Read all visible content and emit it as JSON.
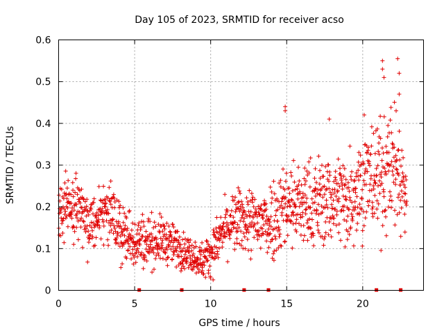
{
  "chart_data": {
    "type": "scatter",
    "title": "Day 105 of 2023, SRMTID for receiver acso",
    "xlabel": "GPS time / hours",
    "ylabel": "SRMTID / TECUs",
    "xlim": [
      0,
      24
    ],
    "ylim": [
      0,
      0.6
    ],
    "xticks": [
      0,
      5,
      10,
      15,
      20
    ],
    "yticks": [
      0,
      0.1,
      0.2,
      0.3,
      0.4,
      0.5,
      0.6
    ],
    "xtick_labels": [
      "0",
      "5",
      "10",
      "15",
      "20"
    ],
    "ytick_labels": [
      "0",
      "0.1",
      "0.2",
      "0.3",
      "0.4",
      "0.5",
      "0.6"
    ],
    "grid": true,
    "marker": "+",
    "color": "#e00000",
    "series": [
      {
        "name": "SRMTID",
        "trend": [
          {
            "x": 0.0,
            "y": 0.18
          },
          {
            "x": 0.5,
            "y": 0.2
          },
          {
            "x": 1.0,
            "y": 0.19
          },
          {
            "x": 2.0,
            "y": 0.16
          },
          {
            "x": 3.0,
            "y": 0.2
          },
          {
            "x": 4.0,
            "y": 0.14
          },
          {
            "x": 5.0,
            "y": 0.12
          },
          {
            "x": 6.0,
            "y": 0.12
          },
          {
            "x": 7.0,
            "y": 0.12
          },
          {
            "x": 8.0,
            "y": 0.1
          },
          {
            "x": 9.0,
            "y": 0.08
          },
          {
            "x": 9.5,
            "y": 0.07
          },
          {
            "x": 10.0,
            "y": 0.09
          },
          {
            "x": 11.0,
            "y": 0.15
          },
          {
            "x": 12.0,
            "y": 0.17
          },
          {
            "x": 13.0,
            "y": 0.16
          },
          {
            "x": 14.0,
            "y": 0.17
          },
          {
            "x": 15.0,
            "y": 0.21
          },
          {
            "x": 16.0,
            "y": 0.2
          },
          {
            "x": 17.0,
            "y": 0.21
          },
          {
            "x": 18.0,
            "y": 0.22
          },
          {
            "x": 19.0,
            "y": 0.22
          },
          {
            "x": 20.0,
            "y": 0.26
          },
          {
            "x": 21.0,
            "y": 0.27
          },
          {
            "x": 22.0,
            "y": 0.3
          },
          {
            "x": 22.9,
            "y": 0.23
          }
        ],
        "spread": [
          {
            "x": 0.0,
            "s": 0.05
          },
          {
            "x": 3.0,
            "s": 0.05
          },
          {
            "x": 6.0,
            "s": 0.04
          },
          {
            "x": 9.0,
            "s": 0.025
          },
          {
            "x": 12.0,
            "s": 0.05
          },
          {
            "x": 15.0,
            "s": 0.07
          },
          {
            "x": 18.0,
            "s": 0.07
          },
          {
            "x": 21.0,
            "s": 0.09
          },
          {
            "x": 22.9,
            "s": 0.09
          }
        ],
        "x_range": [
          0,
          22.9
        ],
        "n_points": 1400,
        "notable_points": [
          {
            "x": 14.9,
            "y": 0.44
          },
          {
            "x": 14.9,
            "y": 0.43
          },
          {
            "x": 17.8,
            "y": 0.41
          },
          {
            "x": 20.1,
            "y": 0.42
          },
          {
            "x": 21.3,
            "y": 0.55
          },
          {
            "x": 21.3,
            "y": 0.53
          },
          {
            "x": 21.4,
            "y": 0.51
          },
          {
            "x": 22.3,
            "y": 0.555
          },
          {
            "x": 22.4,
            "y": 0.52
          },
          {
            "x": 22.4,
            "y": 0.47
          },
          {
            "x": 22.2,
            "y": 0.43
          }
        ]
      }
    ],
    "data_gaps": [
      5.3,
      8.1,
      12.2,
      13.8,
      20.9,
      22.5
    ]
  }
}
